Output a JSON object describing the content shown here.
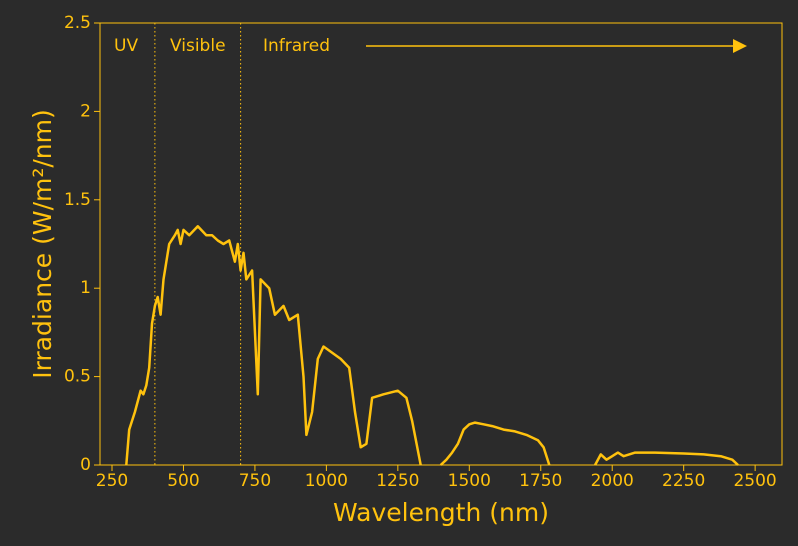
{
  "chart_data": {
    "type": "line",
    "xlabel": "Wavelength (nm)",
    "ylabel": "Irradiance (W/m²/nm)",
    "color": "#ffc20e",
    "annotations": [
      "UV",
      "Visible",
      "Infrared"
    ],
    "region_boundaries": [
      400,
      700
    ],
    "xlim": [
      208,
      2594
    ],
    "ylim": [
      0,
      2.5
    ],
    "xticks": [
      250,
      500,
      750,
      1000,
      1250,
      1500,
      1750,
      2000,
      2250,
      2500
    ],
    "yticks": [
      0,
      0.5,
      1,
      1.5,
      2,
      2.5
    ],
    "x": [
      300,
      310,
      330,
      350,
      360,
      370,
      380,
      390,
      400,
      410,
      420,
      430,
      450,
      470,
      480,
      490,
      500,
      520,
      550,
      580,
      600,
      620,
      640,
      660,
      680,
      690,
      700,
      710,
      720,
      740,
      760,
      770,
      800,
      820,
      850,
      870,
      900,
      920,
      930,
      950,
      970,
      990,
      1050,
      1080,
      1100,
      1120,
      1140,
      1160,
      1200,
      1250,
      1280,
      1300,
      1330,
      1365,
      1400,
      1420,
      1440,
      1460,
      1480,
      1500,
      1520,
      1550,
      1580,
      1620,
      1660,
      1700,
      1740,
      1760,
      1780,
      1860,
      1940,
      1960,
      1980,
      2000,
      2020,
      2040,
      2080,
      2150,
      2250,
      2320,
      2380,
      2420,
      2440
    ],
    "values": [
      0,
      0.2,
      0.3,
      0.42,
      0.4,
      0.45,
      0.55,
      0.8,
      0.9,
      0.95,
      0.85,
      1.05,
      1.25,
      1.3,
      1.33,
      1.25,
      1.33,
      1.3,
      1.35,
      1.3,
      1.3,
      1.27,
      1.25,
      1.27,
      1.15,
      1.25,
      1.1,
      1.2,
      1.05,
      1.1,
      0.4,
      1.05,
      1.0,
      0.85,
      0.9,
      0.82,
      0.85,
      0.5,
      0.17,
      0.3,
      0.6,
      0.67,
      0.6,
      0.55,
      0.3,
      0.1,
      0.12,
      0.38,
      0.4,
      0.42,
      0.38,
      0.25,
      0,
      null,
      0,
      0.03,
      0.07,
      0.12,
      0.2,
      0.23,
      0.24,
      0.23,
      0.22,
      0.2,
      0.19,
      0.17,
      0.14,
      0.1,
      0,
      null,
      0,
      0.06,
      0.03,
      0.05,
      0.07,
      0.05,
      0.07,
      0.07,
      0.065,
      0.06,
      0.05,
      0.03,
      0
    ]
  }
}
